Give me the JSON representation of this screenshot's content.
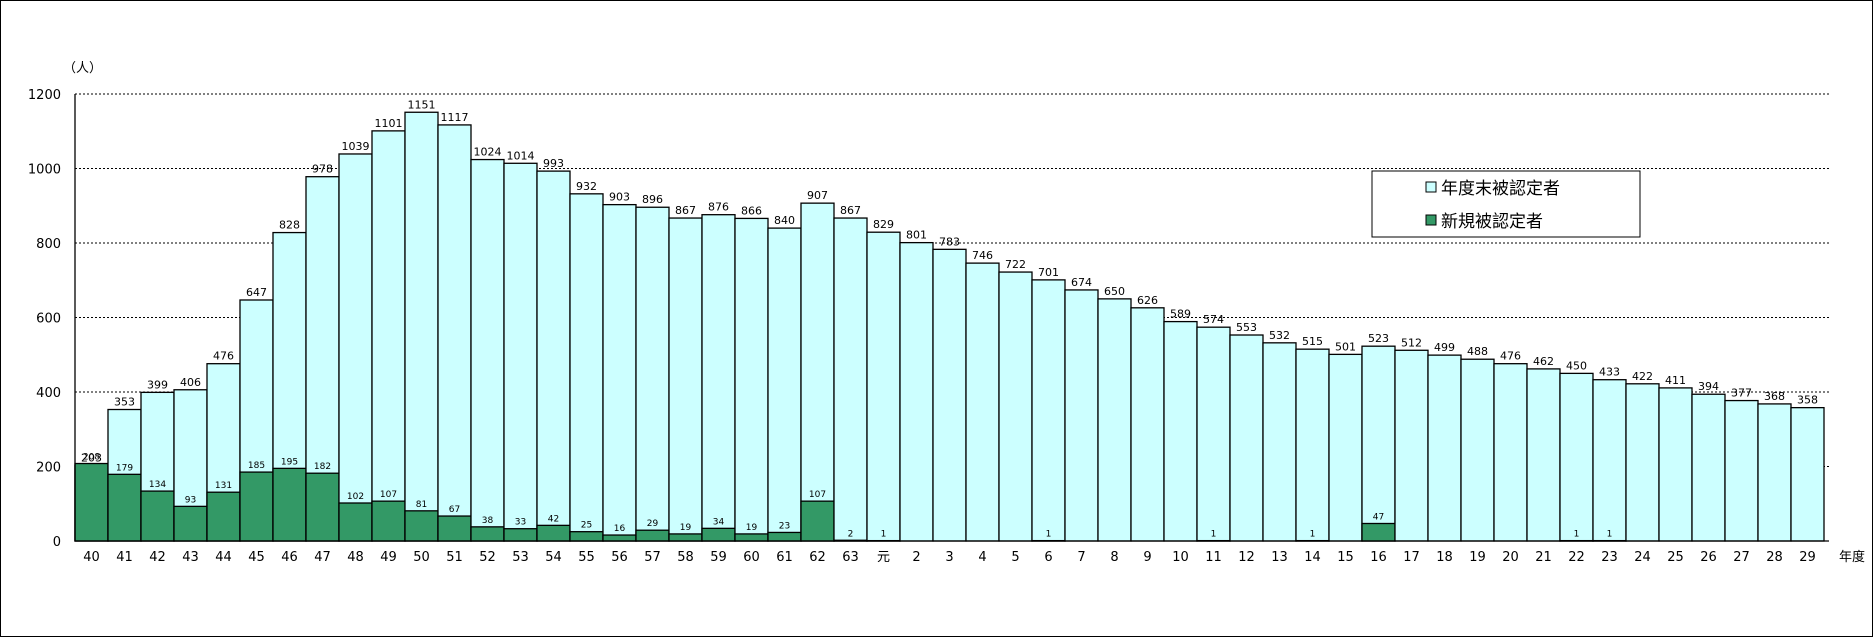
{
  "chart_data": {
    "type": "bar",
    "ylabel": "（人）",
    "xlabel": "年度",
    "ylim": [
      0,
      1200
    ],
    "yticks": [
      0,
      200,
      400,
      600,
      800,
      1000,
      1200
    ],
    "grid": true,
    "legend_position": "top-right",
    "categories": [
      "40",
      "41",
      "42",
      "43",
      "44",
      "45",
      "46",
      "47",
      "48",
      "49",
      "50",
      "51",
      "52",
      "53",
      "54",
      "55",
      "56",
      "57",
      "58",
      "59",
      "60",
      "61",
      "62",
      "63",
      "元",
      "2",
      "3",
      "4",
      "5",
      "6",
      "7",
      "8",
      "9",
      "10",
      "11",
      "12",
      "13",
      "14",
      "15",
      "16",
      "17",
      "18",
      "19",
      "20",
      "21",
      "22",
      "23",
      "24",
      "25",
      "26",
      "27",
      "28",
      "29"
    ],
    "series": [
      {
        "name": "年度末被認定者",
        "color": "#ccffff",
        "values": [
          203,
          353,
          399,
          406,
          476,
          647,
          828,
          978,
          1039,
          1101,
          1151,
          1117,
          1024,
          1014,
          993,
          932,
          903,
          896,
          867,
          876,
          866,
          840,
          907,
          867,
          829,
          801,
          783,
          746,
          722,
          701,
          674,
          650,
          626,
          589,
          574,
          553,
          532,
          515,
          501,
          523,
          512,
          499,
          488,
          476,
          462,
          450,
          433,
          422,
          411,
          394,
          377,
          368,
          358
        ]
      },
      {
        "name": "新規被認定者",
        "color": "#339966",
        "values": [
          208,
          179,
          134,
          93,
          131,
          185,
          195,
          182,
          102,
          107,
          81,
          67,
          38,
          33,
          42,
          25,
          16,
          29,
          19,
          34,
          19,
          23,
          107,
          2,
          1,
          0,
          0,
          0,
          0,
          1,
          0,
          0,
          0,
          0,
          1,
          0,
          0,
          1,
          0,
          47,
          0,
          0,
          0,
          0,
          0,
          1,
          1,
          0,
          0,
          0,
          0,
          0,
          0
        ]
      }
    ]
  }
}
